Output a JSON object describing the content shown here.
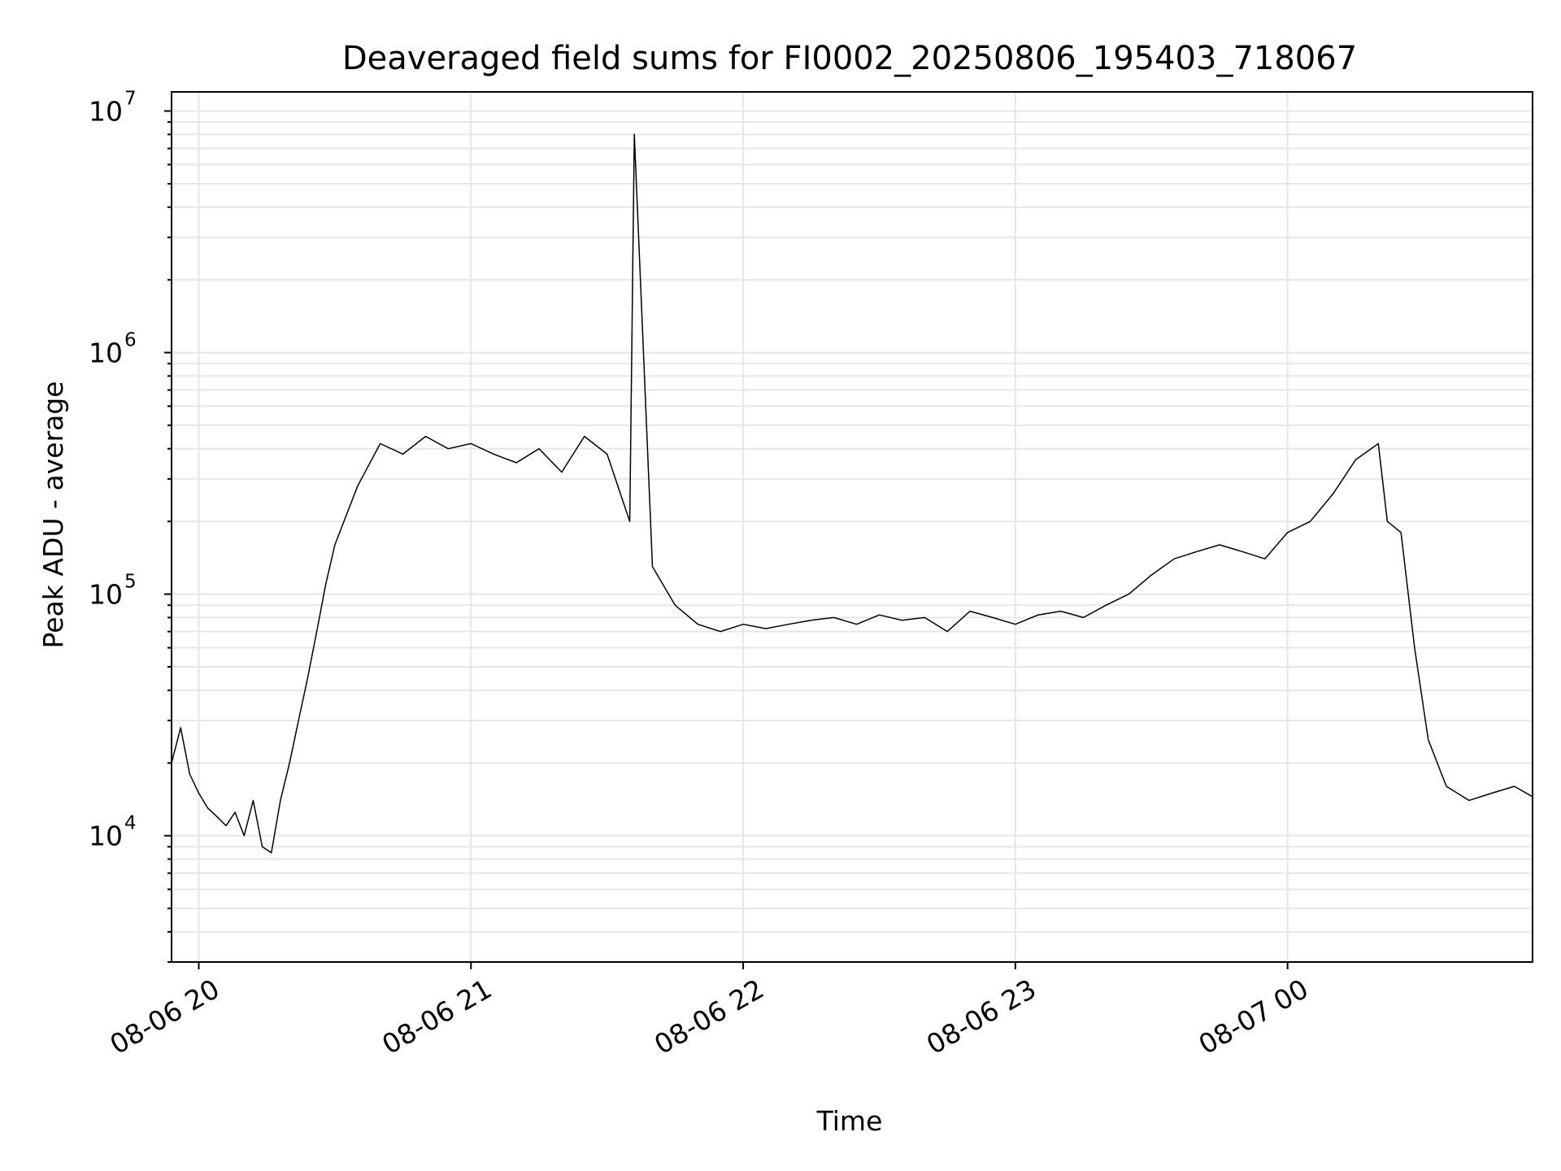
{
  "chart_data": {
    "type": "line",
    "title": "Deaveraged field sums for FI0002_20250806_195403_718067",
    "xlabel": "Time",
    "ylabel": "Peak ADU - average",
    "yscale": "log",
    "ylim": [
      3000,
      12000000
    ],
    "xlim": [
      "2025-08-06 19:54",
      "2025-08-07 00:54"
    ],
    "x_ticks": [
      "08-06 20",
      "08-06 21",
      "08-06 22",
      "08-06 23",
      "08-07 00"
    ],
    "y_ticks": [
      {
        "base": "10",
        "exp": "4"
      },
      {
        "base": "10",
        "exp": "5"
      },
      {
        "base": "10",
        "exp": "6"
      },
      {
        "base": "10",
        "exp": "7"
      }
    ],
    "grid": true,
    "legend": "none",
    "line_color": "#000000",
    "series": [
      {
        "x": [
          "2025-08-06 19:54",
          "2025-08-06 19:56",
          "2025-08-06 19:58",
          "2025-08-06 20:00",
          "2025-08-06 20:02",
          "2025-08-06 20:04",
          "2025-08-06 20:06",
          "2025-08-06 20:08",
          "2025-08-06 20:10",
          "2025-08-06 20:12",
          "2025-08-06 20:14",
          "2025-08-06 20:16",
          "2025-08-06 20:18",
          "2025-08-06 20:20",
          "2025-08-06 20:22",
          "2025-08-06 20:24",
          "2025-08-06 20:26",
          "2025-08-06 20:28",
          "2025-08-06 20:30",
          "2025-08-06 20:35",
          "2025-08-06 20:40",
          "2025-08-06 20:45",
          "2025-08-06 20:50",
          "2025-08-06 20:55",
          "2025-08-06 21:00",
          "2025-08-06 21:05",
          "2025-08-06 21:10",
          "2025-08-06 21:15",
          "2025-08-06 21:20",
          "2025-08-06 21:25",
          "2025-08-06 21:30",
          "2025-08-06 21:35",
          "2025-08-06 21:36",
          "2025-08-06 21:40",
          "2025-08-06 21:45",
          "2025-08-06 21:50",
          "2025-08-06 21:55",
          "2025-08-06 22:00",
          "2025-08-06 22:05",
          "2025-08-06 22:10",
          "2025-08-06 22:15",
          "2025-08-06 22:20",
          "2025-08-06 22:25",
          "2025-08-06 22:30",
          "2025-08-06 22:35",
          "2025-08-06 22:40",
          "2025-08-06 22:45",
          "2025-08-06 22:50",
          "2025-08-06 22:55",
          "2025-08-06 23:00",
          "2025-08-06 23:05",
          "2025-08-06 23:10",
          "2025-08-06 23:15",
          "2025-08-06 23:20",
          "2025-08-06 23:25",
          "2025-08-06 23:30",
          "2025-08-06 23:35",
          "2025-08-06 23:40",
          "2025-08-06 23:45",
          "2025-08-06 23:50",
          "2025-08-06 23:55",
          "2025-08-07 00:00",
          "2025-08-07 00:05",
          "2025-08-07 00:10",
          "2025-08-07 00:15",
          "2025-08-07 00:20",
          "2025-08-07 00:22",
          "2025-08-07 00:25",
          "2025-08-07 00:28",
          "2025-08-07 00:31",
          "2025-08-07 00:35",
          "2025-08-07 00:40",
          "2025-08-07 00:45",
          "2025-08-07 00:50",
          "2025-08-07 00:54"
        ],
        "y": [
          20000,
          28000,
          18000,
          15000,
          13000,
          12000,
          11000,
          12500,
          10000,
          14000,
          9000,
          8500,
          14000,
          20000,
          30000,
          45000,
          70000,
          110000,
          160000,
          280000,
          420000,
          380000,
          450000,
          400000,
          420000,
          380000,
          350000,
          400000,
          320000,
          450000,
          380000,
          200000,
          8000000,
          130000,
          90000,
          75000,
          70000,
          75000,
          72000,
          75000,
          78000,
          80000,
          75000,
          82000,
          78000,
          80000,
          70000,
          85000,
          80000,
          75000,
          82000,
          85000,
          80000,
          90000,
          100000,
          120000,
          140000,
          150000,
          160000,
          150000,
          140000,
          180000,
          200000,
          260000,
          360000,
          420000,
          200000,
          180000,
          60000,
          25000,
          16000,
          14000,
          15000,
          16000,
          14500
        ]
      }
    ]
  }
}
